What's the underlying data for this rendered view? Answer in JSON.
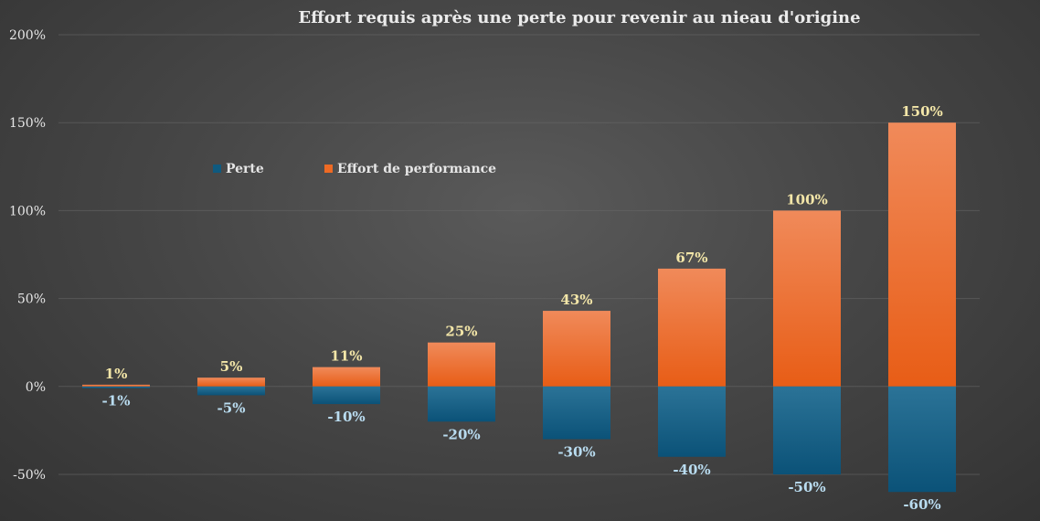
{
  "chart_data": {
    "type": "bar",
    "title": "Effort requis après une perte pour revenir au nieau d'origine",
    "xlabel": "",
    "ylabel": "",
    "ylim": [
      -50,
      200
    ],
    "yticks": [
      200,
      150,
      100,
      50,
      0,
      -50
    ],
    "yticks_labels": [
      "200%",
      "150%",
      "100%",
      "50%",
      "0%",
      "-50%"
    ],
    "grid": true,
    "legend_position": "top-left",
    "colors": {
      "loss": "#0f5a7f",
      "effort": "#ee6a24"
    },
    "series": [
      {
        "name": "Perte",
        "values": [
          -1,
          -5,
          -10,
          -20,
          -30,
          -40,
          -50,
          -60
        ],
        "labels": [
          "-1%",
          "-5%",
          "-10%",
          "-20%",
          "-30%",
          "-40%",
          "-50%",
          "-60%"
        ]
      },
      {
        "name": "Effort de performance",
        "values": [
          1,
          5,
          11,
          25,
          43,
          67,
          100,
          150
        ],
        "labels": [
          "1%",
          "5%",
          "11%",
          "25%",
          "43%",
          "67%",
          "100%",
          "150%"
        ]
      }
    ]
  }
}
